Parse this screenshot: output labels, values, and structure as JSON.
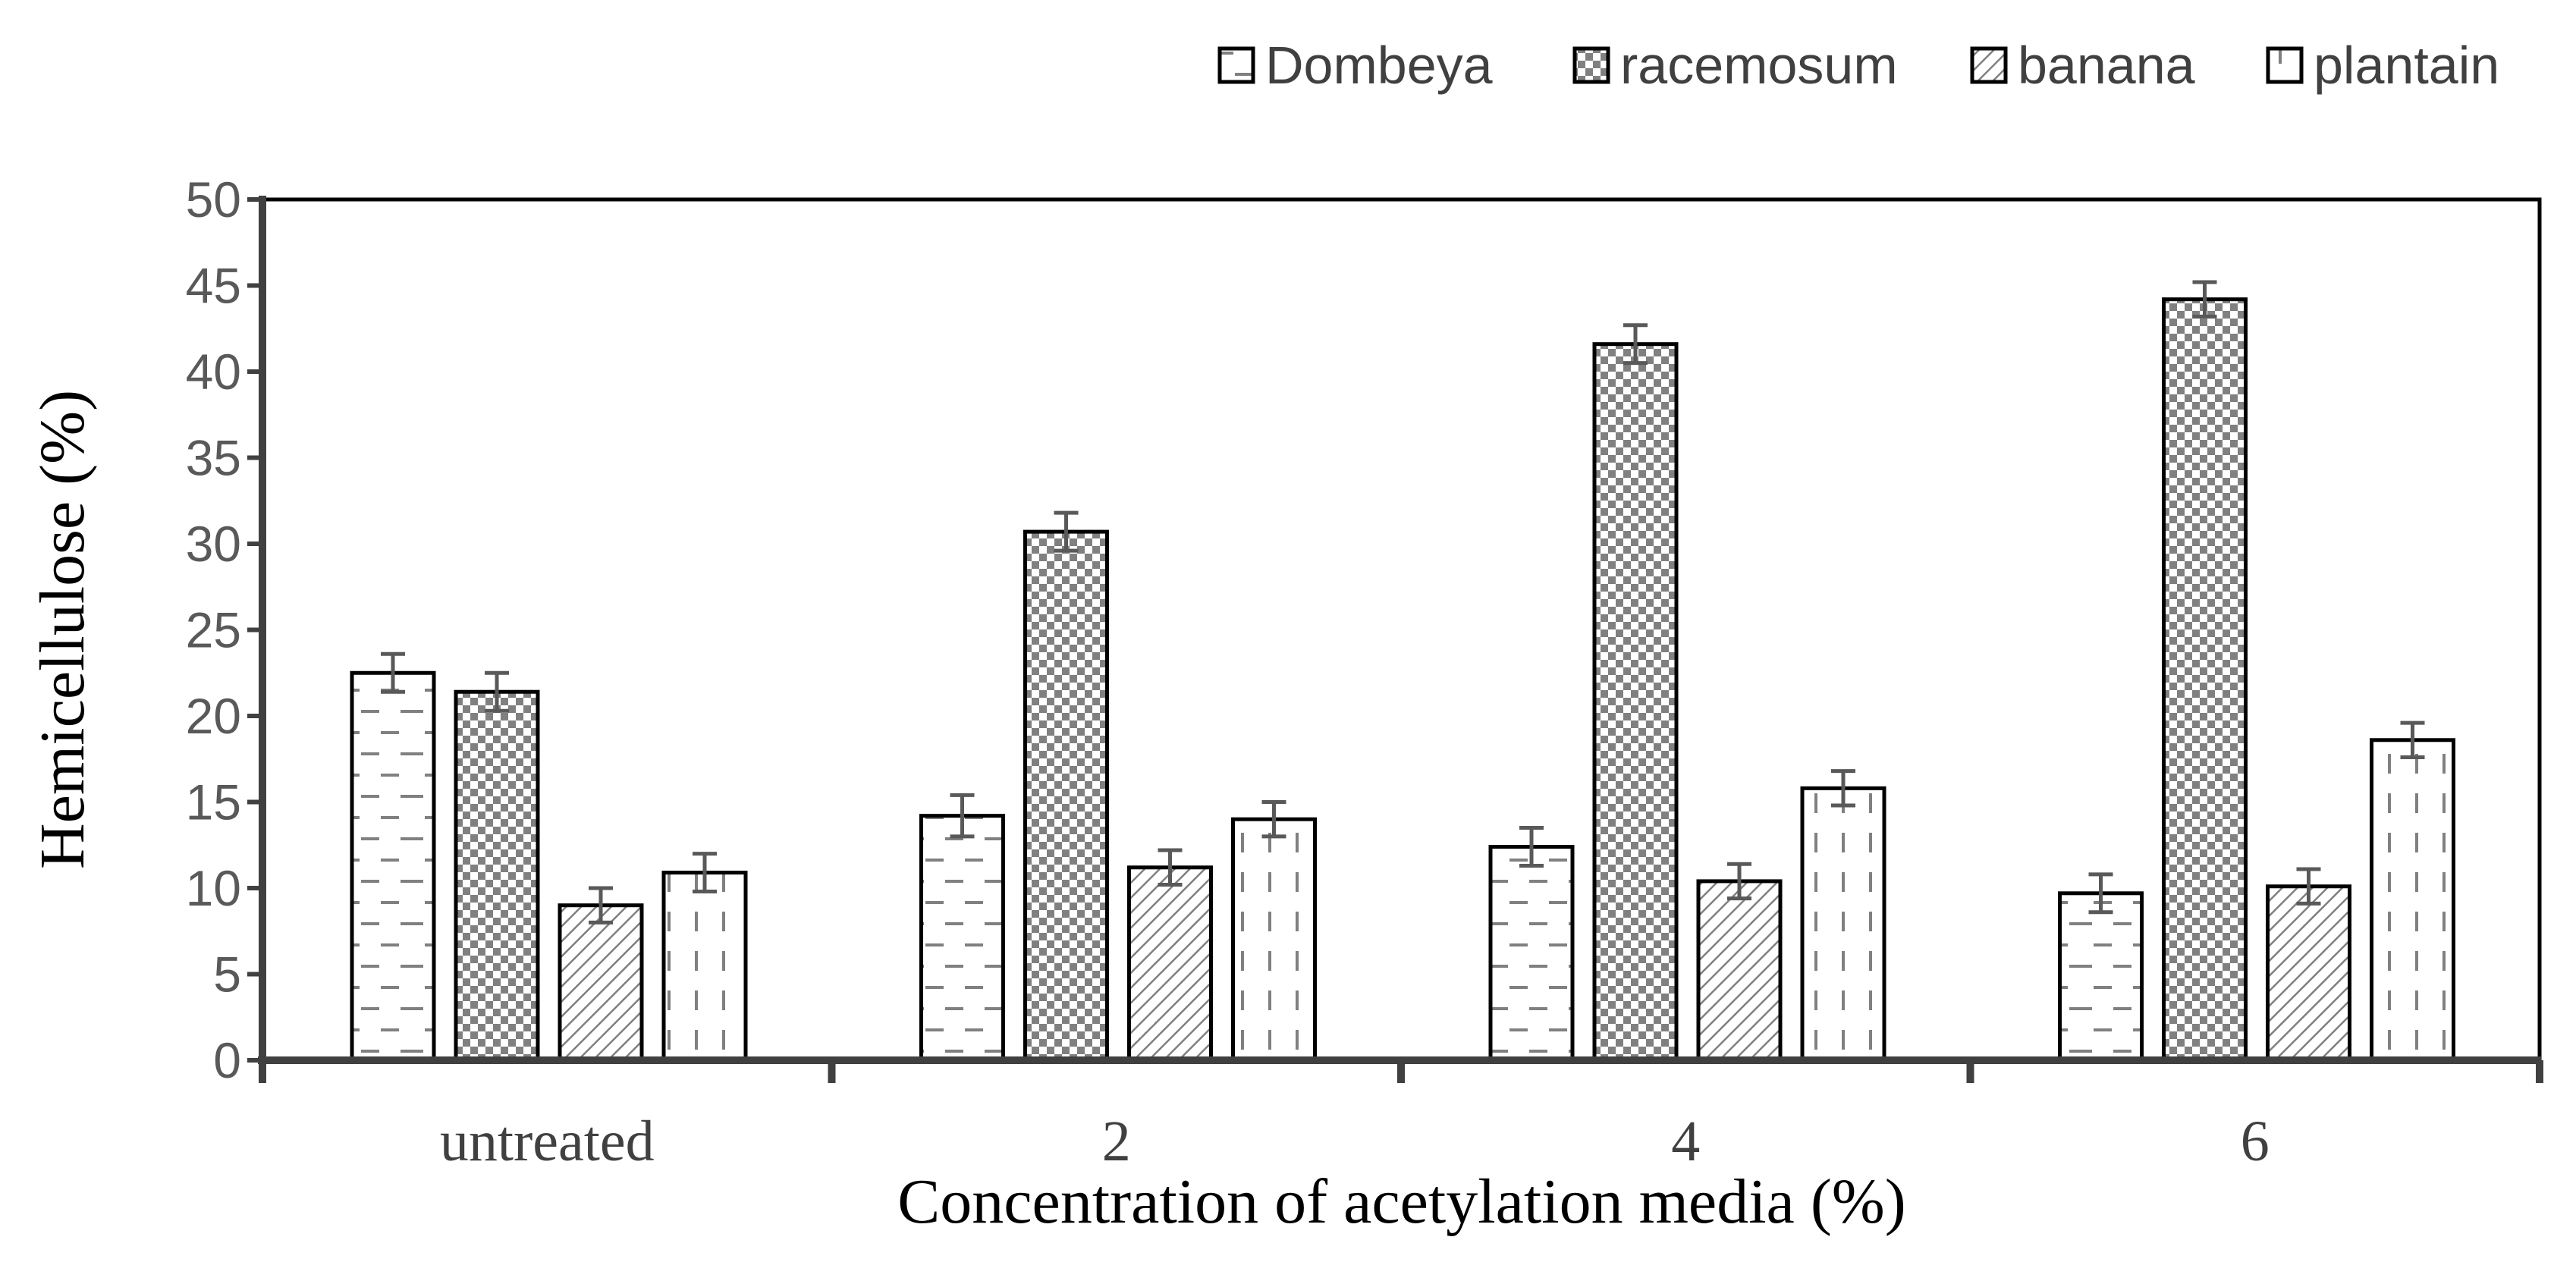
{
  "chart_data": {
    "type": "bar",
    "xlabel": "Concentration of acetylation media (%)",
    "ylabel": "Hemicellulose (%)",
    "categories": [
      "untreated",
      "2",
      "4",
      "6"
    ],
    "ylim": [
      0,
      50
    ],
    "yticks": [
      0,
      5,
      10,
      15,
      20,
      25,
      30,
      35,
      40,
      45,
      50
    ],
    "grid": false,
    "legend_position": "top-right",
    "error_bars": true,
    "series": [
      {
        "name": "Dombeya",
        "pattern": "dashes",
        "values": [
          22.5,
          14.2,
          12.4,
          9.7
        ],
        "errors": [
          1.1,
          1.2,
          1.1,
          1.1
        ]
      },
      {
        "name": "racemosum",
        "pattern": "checker",
        "values": [
          21.4,
          30.7,
          41.6,
          44.2
        ],
        "errors": [
          1.1,
          1.1,
          1.1,
          1.0
        ]
      },
      {
        "name": "banana",
        "pattern": "diagonal",
        "values": [
          9.0,
          11.2,
          10.4,
          10.1
        ],
        "errors": [
          1.0,
          1.0,
          1.0,
          1.0
        ]
      },
      {
        "name": "plantain",
        "pattern": "vdash",
        "values": [
          10.9,
          14.0,
          15.8,
          18.6
        ],
        "errors": [
          1.1,
          1.0,
          1.0,
          1.0
        ]
      }
    ],
    "colors": {
      "bar_stroke": "#000000",
      "pattern": "#808080",
      "axis": "#404040",
      "error_bar": "#595959"
    }
  }
}
